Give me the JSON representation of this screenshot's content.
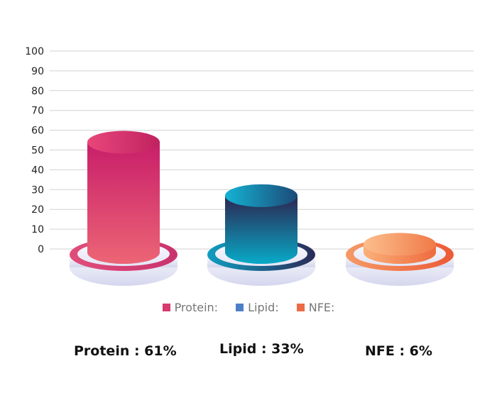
{
  "chart_data": {
    "type": "bar",
    "categories": [
      "Protein",
      "Lipid",
      "NFE"
    ],
    "values": [
      55,
      28,
      2
    ],
    "ylim": [
      0,
      100
    ],
    "yticks": [
      0,
      10,
      20,
      30,
      40,
      50,
      60,
      70,
      80,
      90,
      100
    ],
    "grid": true,
    "legend_position": "bottom",
    "legend": [
      "Protein:",
      "Lipid:",
      "NFE:"
    ],
    "colors": [
      "#d63a6e",
      "#4d7fc7",
      "#ec6a45"
    ],
    "summary_labels": [
      "Protein : 61%",
      "Lipid : 33%",
      "NFE :  6%"
    ]
  }
}
